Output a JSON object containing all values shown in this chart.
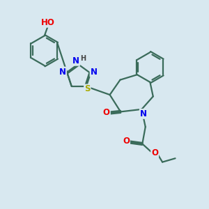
{
  "background_color": "#d8e8f0",
  "bond_color": "#3a6b5a",
  "bond_width": 1.6,
  "atom_colors": {
    "N": "#0000ee",
    "O": "#ee0000",
    "S": "#aaaa00",
    "H": "#444444",
    "C": "#000000"
  },
  "font_size": 8.5,
  "fig_size": [
    3.0,
    3.0
  ],
  "dpi": 100
}
